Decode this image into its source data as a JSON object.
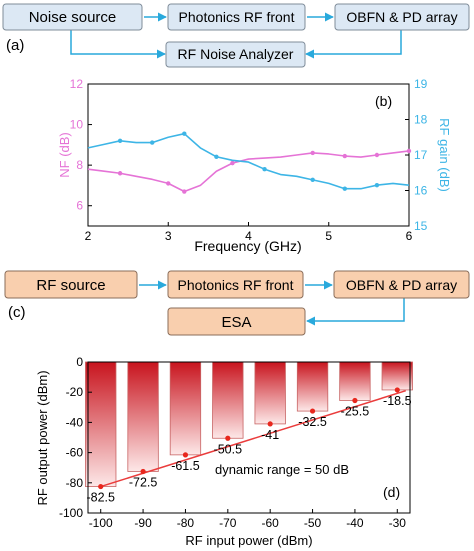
{
  "panel_a": {
    "label": "(a)",
    "boxes": {
      "noise_source": "Noise source",
      "photonics_front": "Photonics RF front",
      "obfn": "OBFN & PD array",
      "analyzer": "RF Noise Analyzer"
    },
    "colors": {
      "box_fill": "#dce8f4",
      "box_stroke": "#7f8c99",
      "arrow": "#29a9dc"
    }
  },
  "panel_b": {
    "label": "(b)",
    "chart_data": {
      "type": "line",
      "xlabel": "Frequency (GHz)",
      "ylabel_left": "NF (dB)",
      "ylabel_right": "RF gain (dB)",
      "xlim": [
        2,
        6
      ],
      "ylim_left": [
        5,
        12
      ],
      "ylim_right": [
        15,
        19
      ],
      "x_ticks": [
        "2",
        "3",
        "4",
        "5",
        "6"
      ],
      "y_ticks_left": [
        "6",
        "8",
        "10",
        "12"
      ],
      "y_ticks_right": [
        "15",
        "16",
        "17",
        "18",
        "19"
      ],
      "series": [
        {
          "axis": "left",
          "color": "#e573d6",
          "x": [
            2.0,
            2.2,
            2.4,
            2.6,
            2.8,
            3.0,
            3.2,
            3.4,
            3.6,
            3.8,
            4.0,
            4.2,
            4.4,
            4.6,
            4.8,
            5.0,
            5.2,
            5.4,
            5.6,
            5.8,
            6.0
          ],
          "y": [
            7.8,
            7.7,
            7.6,
            7.45,
            7.3,
            7.1,
            6.7,
            7.0,
            7.7,
            8.1,
            8.3,
            8.35,
            8.4,
            8.5,
            8.6,
            8.55,
            8.45,
            8.4,
            8.5,
            8.6,
            8.7
          ],
          "marker_x": [
            2.4,
            3.0,
            3.2,
            3.8,
            4.8,
            5.2,
            5.6,
            6.0
          ],
          "marker_y": [
            7.6,
            7.1,
            6.7,
            8.1,
            8.6,
            8.45,
            8.5,
            8.7
          ]
        },
        {
          "axis": "right",
          "color": "#3db5e6",
          "x": [
            2.0,
            2.2,
            2.4,
            2.6,
            2.8,
            3.0,
            3.2,
            3.4,
            3.6,
            3.8,
            4.0,
            4.2,
            4.4,
            4.6,
            4.8,
            5.0,
            5.2,
            5.4,
            5.6,
            5.8,
            6.0
          ],
          "y": [
            17.2,
            17.3,
            17.4,
            17.35,
            17.35,
            17.5,
            17.6,
            17.2,
            16.95,
            16.85,
            16.8,
            16.6,
            16.45,
            16.4,
            16.3,
            16.2,
            16.05,
            16.05,
            16.15,
            16.2,
            16.15
          ],
          "marker_x": [
            2.4,
            2.8,
            3.2,
            3.6,
            4.2,
            4.8,
            5.2,
            5.6
          ],
          "marker_y": [
            17.4,
            17.35,
            17.6,
            16.95,
            16.6,
            16.3,
            16.05,
            16.15
          ]
        }
      ]
    }
  },
  "panel_c": {
    "label": "(c)",
    "boxes": {
      "rf_source": "RF source",
      "photonics_front": "Photonics RF front",
      "obfn": "OBFN & PD array",
      "esa": "ESA"
    },
    "colors": {
      "box_fill": "#f9cfae",
      "box_stroke": "#8a6d5a",
      "arrow": "#29a9dc"
    }
  },
  "panel_d": {
    "label": "(d)",
    "chart_data": {
      "type": "bar",
      "xlabel": "RF input power (dBm)",
      "ylabel": "RF output power (dBm)",
      "categories": [
        "-100",
        "-90",
        "-80",
        "-70",
        "-60",
        "-50",
        "-40",
        "-30"
      ],
      "x_values": [
        -100,
        -90,
        -80,
        -70,
        -60,
        -50,
        -40,
        -30
      ],
      "values": [
        -82.5,
        -72.5,
        -61.5,
        -50.5,
        -41,
        -32.5,
        -25.5,
        -18.5
      ],
      "value_labels": [
        "-82.5",
        "-72.5",
        "-61.5",
        "-50.5",
        "-41",
        "-32.5",
        "-25.5",
        "-18.5"
      ],
      "xlim": [
        -103,
        -27
      ],
      "ylim": [
        -100,
        0
      ],
      "y_ticks": [
        "0",
        "-20",
        "-40",
        "-60",
        "-80",
        "-100"
      ],
      "annotation": "dynamic range = 50 dB",
      "fit_line": {
        "x": [
          -100,
          -28
        ],
        "y": [
          -82.5,
          -19
        ],
        "color": "#ea3c3c"
      },
      "colors": {
        "bar_top": "#c8141e",
        "bar_bottom": "#ffffff",
        "marker": "#e8281e"
      }
    }
  }
}
